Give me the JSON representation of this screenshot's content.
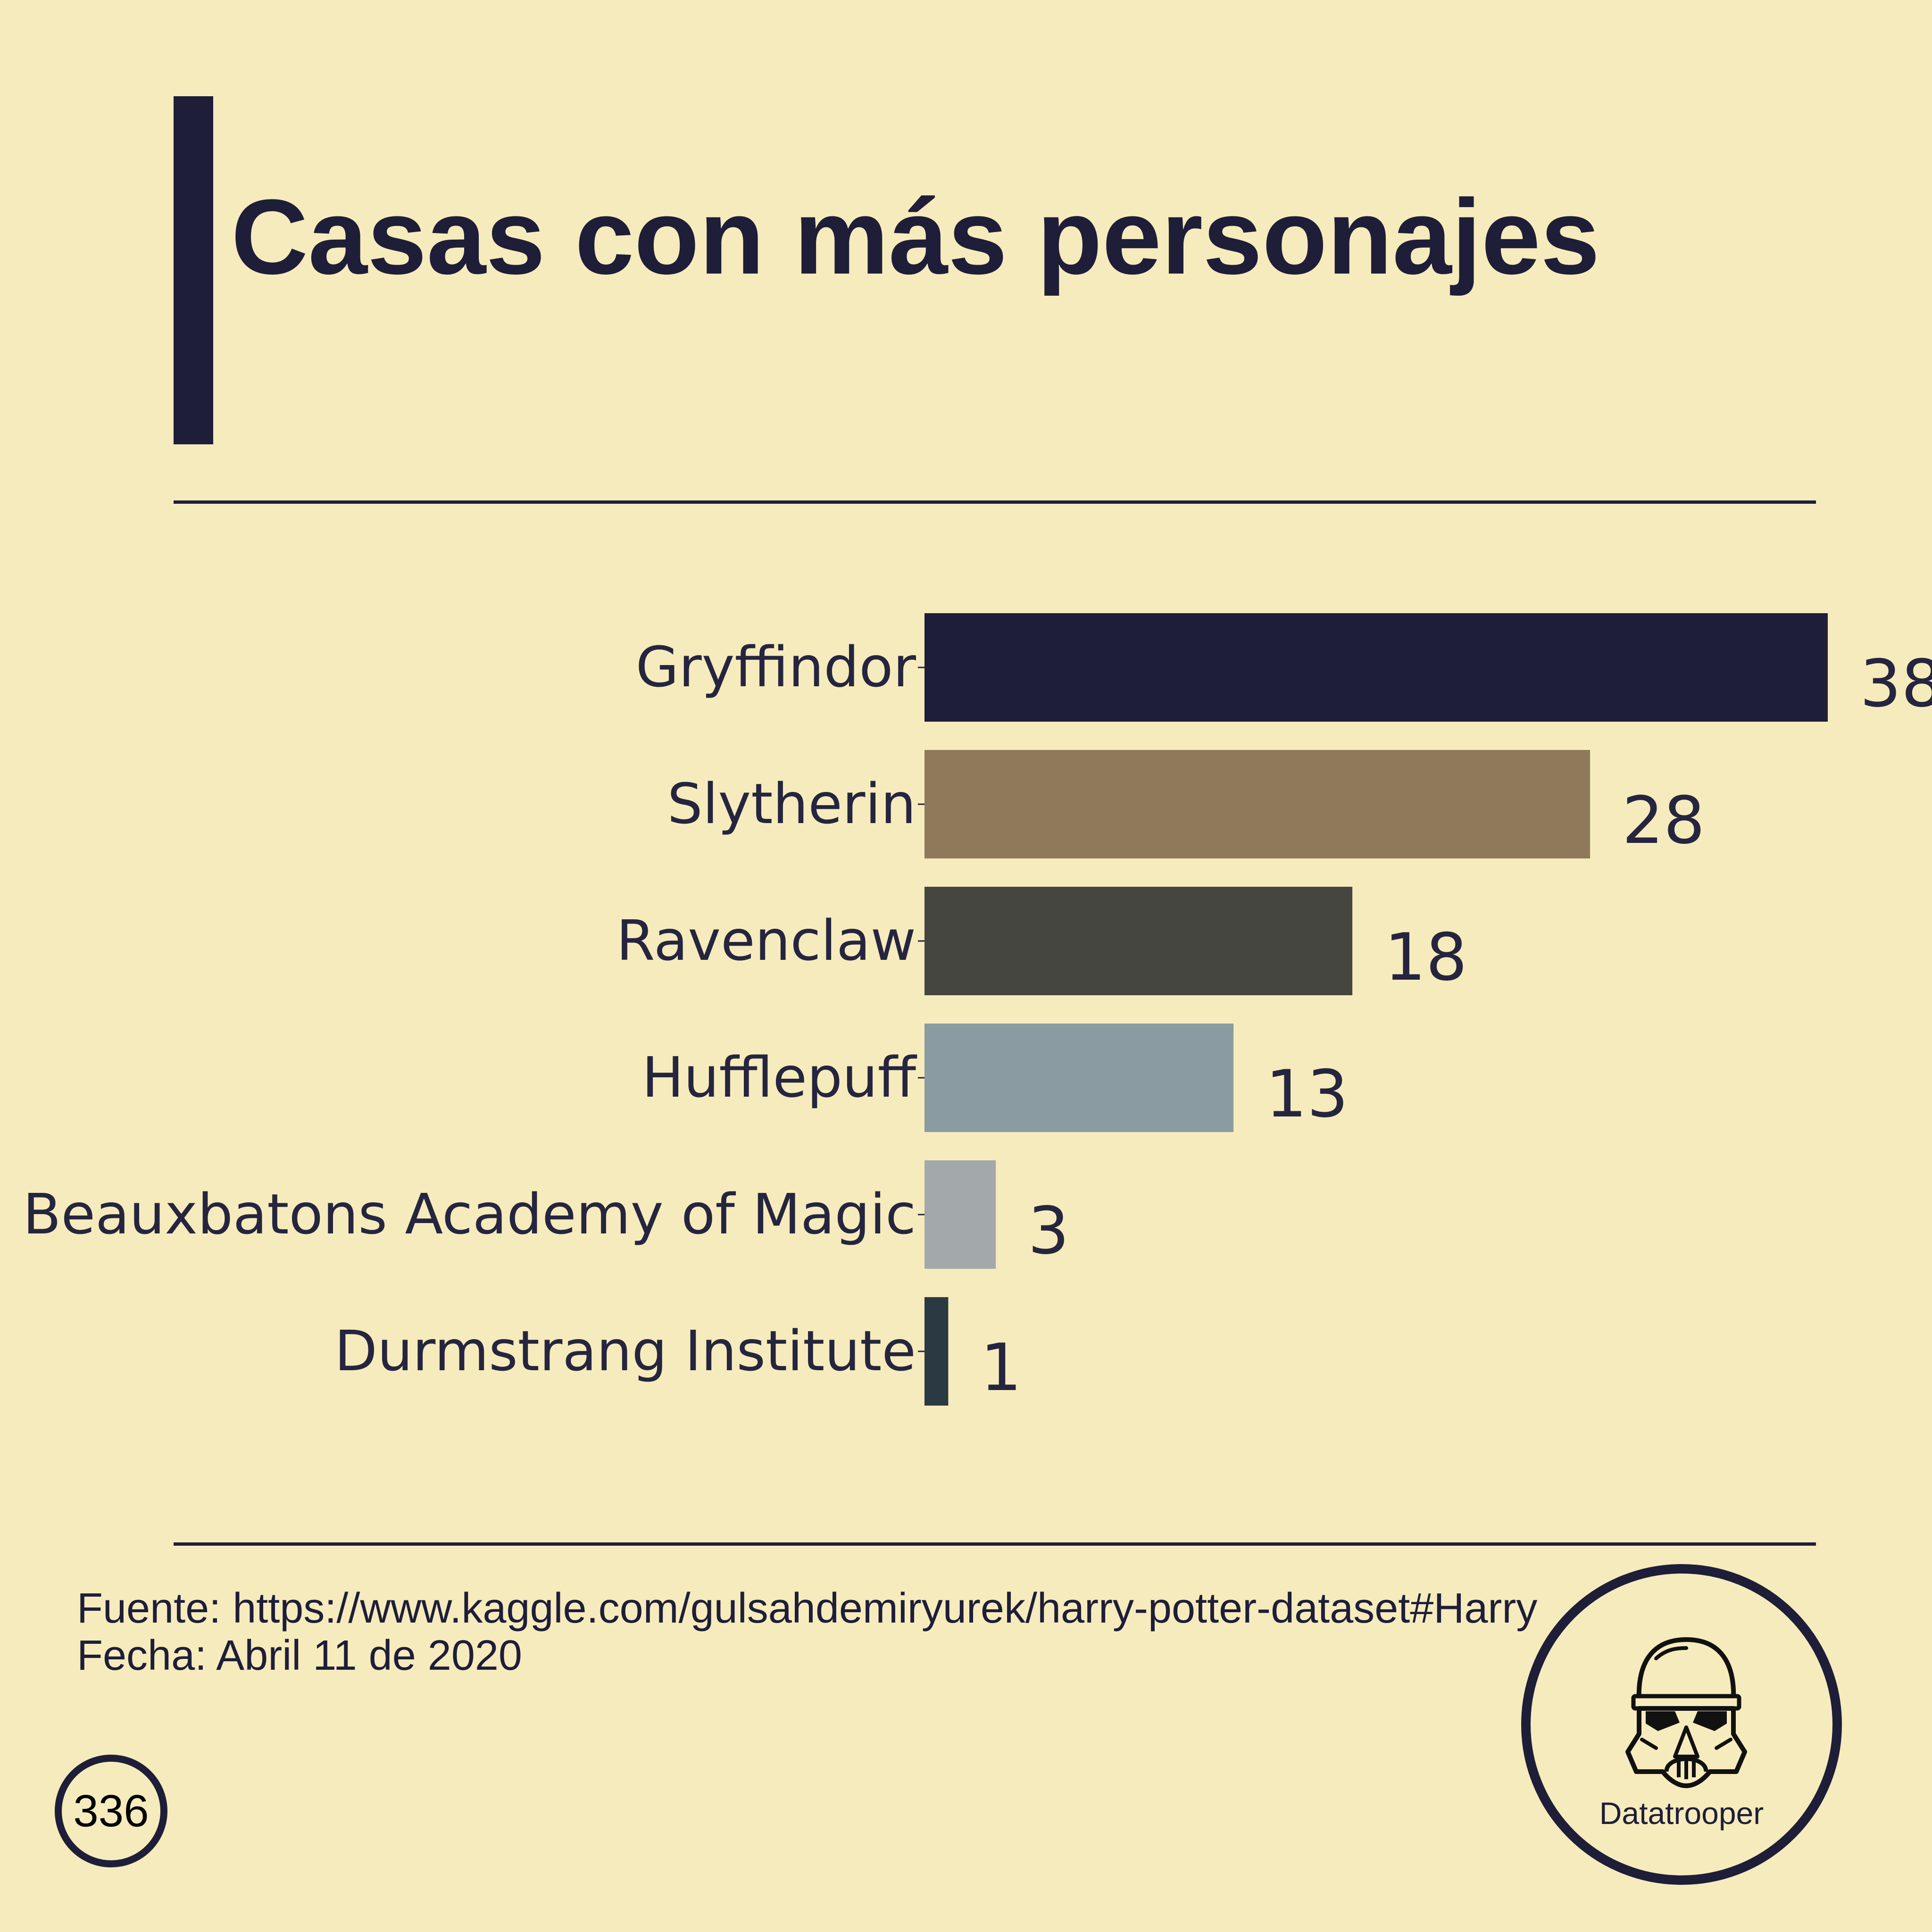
{
  "title": "Casas con más personajes",
  "chart_data": {
    "type": "bar",
    "orientation": "horizontal",
    "categories": [
      "Gryffindor",
      "Slytherin",
      "Ravenclaw",
      "Hufflepuff",
      "Beauxbatons Academy of Magic",
      "Durmstrang Institute"
    ],
    "values": [
      38,
      28,
      18,
      13,
      3,
      1
    ],
    "data_labels": [
      "38",
      "28",
      "18",
      "13",
      "3",
      "1"
    ],
    "colors": [
      "#1e1e39",
      "#8e7a5a",
      "#45463f",
      "#8a9ca1",
      "#a3a9aa",
      "#2b3a42"
    ],
    "xlim": [
      0,
      38
    ],
    "grid": false,
    "legend": "none"
  },
  "footer": {
    "source": "Fuente: https://www.kaggle.com/gulsahdemiryurek/harry-potter-dataset#Harry",
    "date": "Fecha: Abril 11 de 2020"
  },
  "page_number": "336",
  "logo": {
    "name": "Datatrooper",
    "icon": "stormtrooper-helmet-icon"
  }
}
